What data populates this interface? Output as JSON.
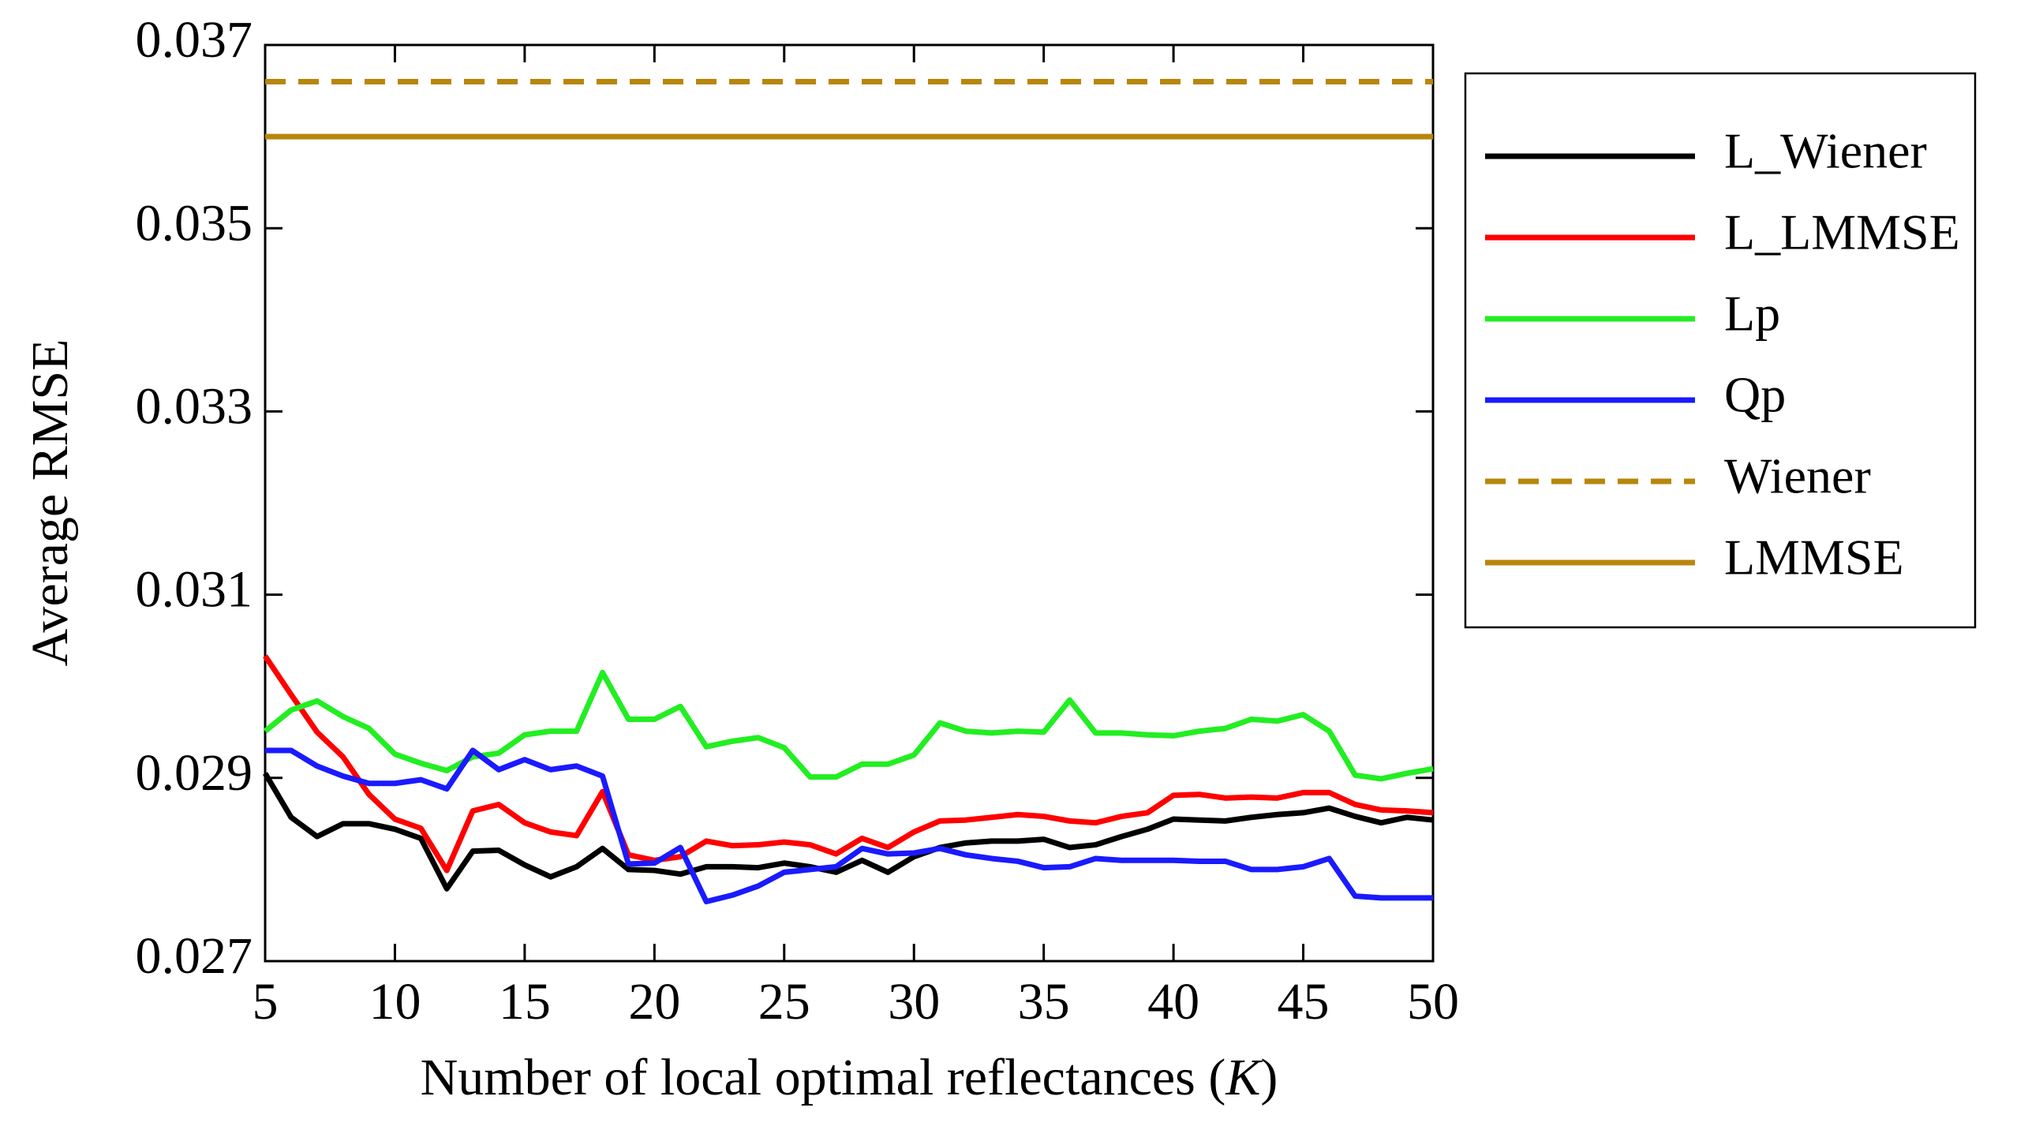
{
  "chart_data": {
    "type": "line",
    "xlabel": [
      "Number of local optimal reflectances (",
      "K",
      ")"
    ],
    "ylabel": "Average RMSE",
    "xlim": [
      5,
      50
    ],
    "xticks": [
      5,
      10,
      15,
      20,
      25,
      30,
      35,
      40,
      45,
      50
    ],
    "ylim": [
      0.027,
      0.037
    ],
    "yticks": [
      0.027,
      0.029,
      0.031,
      0.033,
      0.035,
      0.037
    ],
    "legend": "outside-right",
    "series": [
      {
        "name": "L_Wiener",
        "color": "#000000",
        "x": [
          5,
          6,
          7,
          8,
          9,
          10,
          11,
          12,
          13,
          14,
          15,
          16,
          17,
          18,
          19,
          20,
          21,
          22,
          23,
          24,
          25,
          26,
          27,
          28,
          29,
          30,
          31,
          32,
          33,
          34,
          35,
          36,
          37,
          38,
          39,
          40,
          41,
          42,
          43,
          44,
          45,
          46,
          47,
          48,
          49,
          50
        ],
        "values": [
          0.02905,
          0.02857,
          0.02836,
          0.0285,
          0.0285,
          0.02844,
          0.02834,
          0.02779,
          0.0282,
          0.02821,
          0.02805,
          0.02792,
          0.02803,
          0.02823,
          0.028,
          0.02799,
          0.02795,
          0.02803,
          0.02803,
          0.02802,
          0.02807,
          0.02803,
          0.02797,
          0.0281,
          0.02797,
          0.02814,
          0.02824,
          0.02829,
          0.02831,
          0.02831,
          0.02833,
          0.02824,
          0.02827,
          0.02836,
          0.02844,
          0.02855,
          0.02854,
          0.02853,
          0.02857,
          0.0286,
          0.02862,
          0.02867,
          0.02858,
          0.02851,
          0.02857,
          0.02854
        ]
      },
      {
        "name": "L_LMMSE",
        "color": "#ff0000",
        "x": [
          5,
          6,
          7,
          8,
          9,
          10,
          11,
          12,
          13,
          14,
          15,
          16,
          17,
          18,
          19,
          20,
          21,
          22,
          23,
          24,
          25,
          26,
          27,
          28,
          29,
          30,
          31,
          32,
          33,
          34,
          35,
          36,
          37,
          38,
          39,
          40,
          41,
          42,
          43,
          44,
          45,
          46,
          47,
          48,
          49,
          50
        ],
        "values": [
          0.03033,
          0.02991,
          0.0295,
          0.02923,
          0.02882,
          0.02855,
          0.02845,
          0.02799,
          0.02864,
          0.02871,
          0.02851,
          0.02841,
          0.02837,
          0.02885,
          0.02816,
          0.0281,
          0.02814,
          0.02831,
          0.02826,
          0.02827,
          0.0283,
          0.02827,
          0.02817,
          0.02834,
          0.02824,
          0.02841,
          0.02853,
          0.02854,
          0.02857,
          0.0286,
          0.02858,
          0.02853,
          0.02851,
          0.02858,
          0.02862,
          0.02881,
          0.02882,
          0.02878,
          0.02879,
          0.02878,
          0.02884,
          0.02884,
          0.02871,
          0.02865,
          0.02864,
          0.02862
        ]
      },
      {
        "name": "Lp",
        "color": "#22ee22",
        "x": [
          5,
          6,
          7,
          8,
          9,
          10,
          11,
          12,
          13,
          14,
          15,
          16,
          17,
          18,
          19,
          20,
          21,
          22,
          23,
          24,
          25,
          26,
          27,
          28,
          29,
          30,
          31,
          32,
          33,
          34,
          35,
          36,
          37,
          38,
          39,
          40,
          41,
          42,
          43,
          44,
          45,
          46,
          47,
          48,
          49,
          50
        ],
        "values": [
          0.02951,
          0.02974,
          0.02984,
          0.02967,
          0.02954,
          0.02926,
          0.02916,
          0.02908,
          0.02923,
          0.02927,
          0.02947,
          0.02951,
          0.02951,
          0.03015,
          0.02964,
          0.02964,
          0.02978,
          0.02934,
          0.0294,
          0.02944,
          0.02933,
          0.02901,
          0.02901,
          0.02915,
          0.02915,
          0.02925,
          0.0296,
          0.02951,
          0.02949,
          0.02951,
          0.0295,
          0.02985,
          0.02949,
          0.02949,
          0.02947,
          0.02946,
          0.02951,
          0.02954,
          0.02964,
          0.02962,
          0.02969,
          0.02951,
          0.02903,
          0.02899,
          0.02905,
          0.0291
        ]
      },
      {
        "name": "Qp",
        "color": "#1a1aff",
        "x": [
          5,
          6,
          7,
          8,
          9,
          10,
          11,
          12,
          13,
          14,
          15,
          16,
          17,
          18,
          19,
          20,
          21,
          22,
          23,
          24,
          25,
          26,
          27,
          28,
          29,
          30,
          31,
          32,
          33,
          34,
          35,
          36,
          37,
          38,
          39,
          40,
          41,
          42,
          43,
          44,
          45,
          46,
          47,
          48,
          49,
          50
        ],
        "values": [
          0.0293,
          0.0293,
          0.02913,
          0.02902,
          0.02894,
          0.02894,
          0.02898,
          0.02888,
          0.0293,
          0.02909,
          0.0292,
          0.02909,
          0.02913,
          0.02902,
          0.02806,
          0.02807,
          0.02824,
          0.02765,
          0.02772,
          0.02782,
          0.02797,
          0.028,
          0.02803,
          0.02823,
          0.02817,
          0.02818,
          0.02823,
          0.02816,
          0.02812,
          0.02809,
          0.02802,
          0.02803,
          0.02812,
          0.0281,
          0.0281,
          0.0281,
          0.02809,
          0.02809,
          0.028,
          0.028,
          0.02803,
          0.02812,
          0.02771,
          0.02769,
          0.02769,
          0.02769
        ]
      },
      {
        "name": "Wiener",
        "color": "#b8860b",
        "dashed": true,
        "x": [
          5,
          50
        ],
        "values": [
          0.0366,
          0.0366
        ]
      },
      {
        "name": "LMMSE",
        "color": "#b8860b",
        "x": [
          5,
          50
        ],
        "values": [
          0.036,
          0.036
        ]
      }
    ]
  }
}
